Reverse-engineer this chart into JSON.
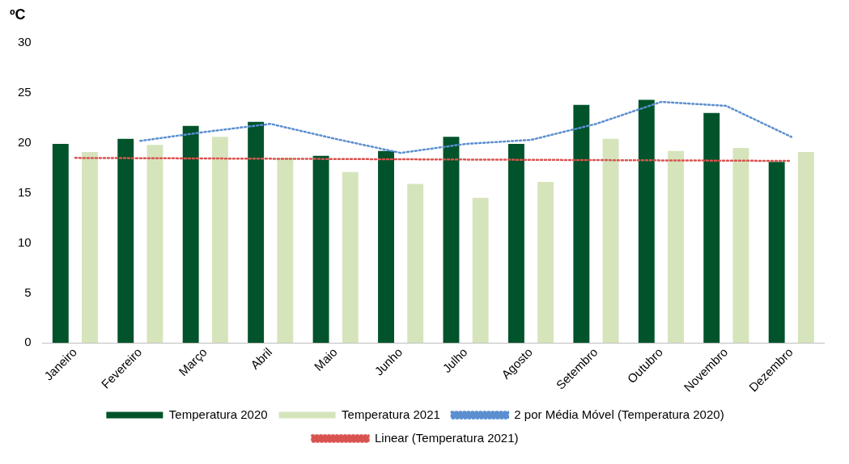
{
  "chart_data": {
    "type": "bar",
    "ylabel": "ºC",
    "categories": [
      "Janeiro",
      "Fevereiro",
      "Março",
      "Abril",
      "Maio",
      "Junho",
      "Julho",
      "Agosto",
      "Setembro",
      "Outubro",
      "Novembro",
      "Dezembro"
    ],
    "series": [
      {
        "name": "Temperatura 2020",
        "color": "#00532a",
        "values": [
          19.9,
          20.4,
          21.7,
          22.1,
          18.7,
          19.2,
          20.6,
          19.9,
          23.8,
          24.3,
          23.0,
          18.1
        ]
      },
      {
        "name": "Temperatura 2021",
        "color": "#d6e4bc",
        "values": [
          19.1,
          19.8,
          20.6,
          18.5,
          17.1,
          15.9,
          14.5,
          16.1,
          20.4,
          19.2,
          19.5,
          19.1
        ]
      },
      {
        "name": "2 por Média Móvel (Temperatura 2020)",
        "type": "line",
        "line_style": "dotted",
        "color": "#5b8fd0",
        "values": [
          null,
          20.2,
          21.1,
          21.9,
          20.4,
          19.0,
          19.9,
          20.3,
          21.9,
          24.1,
          23.7,
          20.6
        ]
      },
      {
        "name": "Linear (Temperatura 2021)",
        "type": "line",
        "line_style": "dotted",
        "color": "#d9534f",
        "values": [
          18.5,
          null,
          null,
          null,
          null,
          null,
          null,
          null,
          null,
          null,
          null,
          18.2
        ]
      }
    ],
    "ylim": [
      0,
      30
    ],
    "yticks": [
      0,
      5,
      10,
      15,
      20,
      25,
      30
    ],
    "grid": false,
    "legend": "bottom",
    "marker": "none"
  }
}
